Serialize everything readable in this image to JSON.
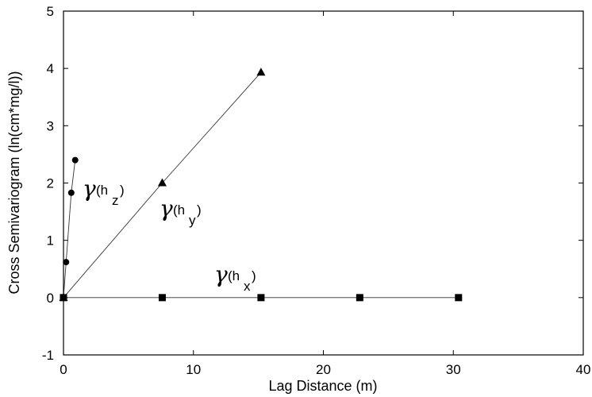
{
  "chart_data": {
    "type": "scatter",
    "xlabel": "Lag Distance (m)",
    "ylabel": "Cross Semivariogram (ln(cm*mg/l))",
    "xlim": [
      0,
      40
    ],
    "ylim": [
      -1,
      5
    ],
    "xticks": [
      "0",
      "10",
      "20",
      "30",
      "40"
    ],
    "yticks": [
      "-1",
      "0",
      "1",
      "2",
      "3",
      "4",
      "5"
    ],
    "grid": false,
    "series": [
      {
        "label_parts": [
          "γ",
          "(h",
          "z",
          ")"
        ],
        "marker": "circle",
        "points": [
          [
            0,
            0
          ],
          [
            0.2,
            0.62
          ],
          [
            0.6,
            1.83
          ],
          [
            0.9,
            2.4
          ]
        ]
      },
      {
        "label_parts": [
          "γ",
          "(h",
          "y",
          ")"
        ],
        "marker": "triangle",
        "points": [
          [
            0,
            0
          ],
          [
            7.6,
            2.0
          ],
          [
            15.2,
            3.93
          ]
        ]
      },
      {
        "label_parts": [
          "γ",
          "(h",
          "x",
          ")"
        ],
        "marker": "square",
        "points": [
          [
            0,
            0
          ],
          [
            7.6,
            0
          ],
          [
            15.2,
            0
          ],
          [
            22.8,
            0
          ],
          [
            30.4,
            0
          ]
        ]
      }
    ]
  }
}
